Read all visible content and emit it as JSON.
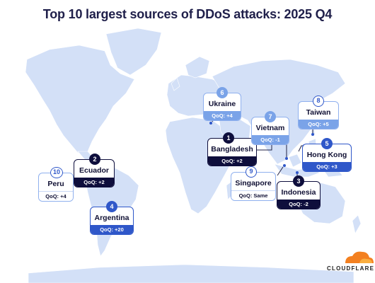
{
  "title": "Top 10 largest sources of DDoS attacks: 2025 Q4",
  "brand": "CLOUDFLARE",
  "colors": {
    "land": "#d3e0f7",
    "dark": "#0e0e3c",
    "mid": "#2f57c9",
    "light": "#7aa3e8"
  },
  "countries": [
    {
      "rank": "1",
      "name": "Bangladesh",
      "qoq": "QoQ: +2"
    },
    {
      "rank": "2",
      "name": "Ecuador",
      "qoq": "QoQ: +2"
    },
    {
      "rank": "3",
      "name": "Indonesia",
      "qoq": "QoQ: -2"
    },
    {
      "rank": "4",
      "name": "Argentina",
      "qoq": "QoQ: +20"
    },
    {
      "rank": "5",
      "name": "Hong Kong",
      "qoq": "QoQ: +3"
    },
    {
      "rank": "6",
      "name": "Ukraine",
      "qoq": "QoQ: +4"
    },
    {
      "rank": "7",
      "name": "Vietnam",
      "qoq": "QoQ: -1"
    },
    {
      "rank": "8",
      "name": "Taiwan",
      "qoq": "QoQ: +5"
    },
    {
      "rank": "9",
      "name": "Singapore",
      "qoq": "QoQ: Same"
    },
    {
      "rank": "10",
      "name": "Peru",
      "qoq": "QoQ: +4"
    }
  ]
}
